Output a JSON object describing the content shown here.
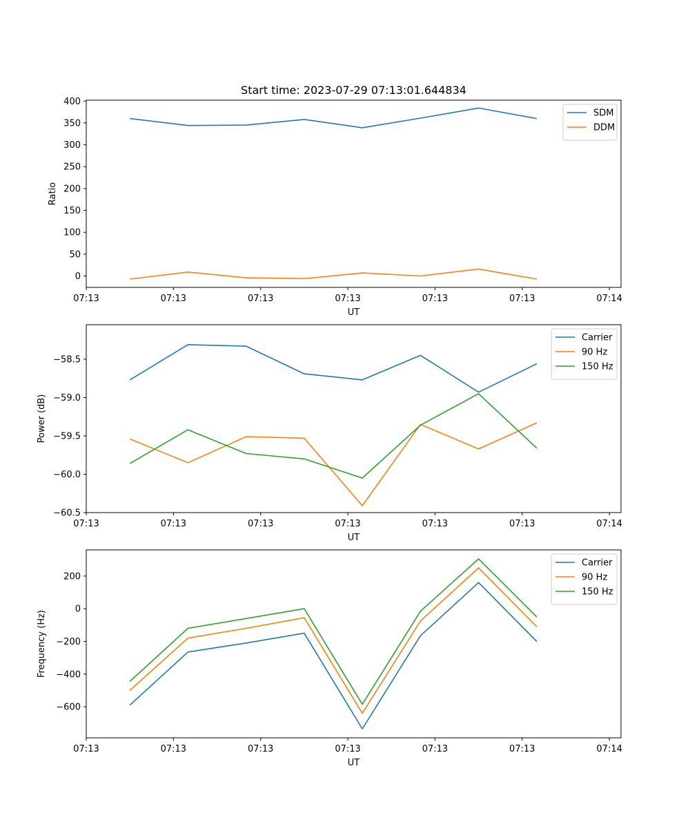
{
  "chart_data": [
    {
      "type": "line",
      "title": "Start time: 2023-07-29 07:13:01.644834",
      "xlabel": "UT",
      "ylabel": "Ratio",
      "x": [
        0,
        1,
        2,
        3,
        4,
        5,
        6,
        7
      ],
      "xlim": [
        -0.75,
        8.45
      ],
      "xtick_positions": [
        -0.75,
        0.75,
        2.25,
        3.75,
        5.25,
        6.75,
        8.25
      ],
      "xtick_labels": [
        "07:13",
        "07:13",
        "07:13",
        "07:13",
        "07:13",
        "07:13",
        "07:14"
      ],
      "ylim": [
        -26,
        402
      ],
      "yticks": [
        0,
        50,
        100,
        150,
        200,
        250,
        300,
        350,
        400
      ],
      "ytick_labels": [
        "0",
        "50",
        "100",
        "150",
        "200",
        "250",
        "300",
        "350",
        "400"
      ],
      "legend_position": "top-right",
      "series": [
        {
          "name": "SDM",
          "color": "#1f77b4",
          "values": [
            360,
            344,
            345,
            358,
            339,
            361,
            384,
            360
          ]
        },
        {
          "name": "DDM",
          "color": "#ff7f0e",
          "values": [
            -7,
            9,
            -4,
            -6,
            7,
            0,
            16,
            -7
          ]
        }
      ]
    },
    {
      "type": "line",
      "title": "",
      "xlabel": "UT",
      "ylabel": "Power (dB)",
      "x": [
        0,
        1,
        2,
        3,
        4,
        5,
        6,
        7
      ],
      "xlim": [
        -0.75,
        8.45
      ],
      "xtick_positions": [
        -0.75,
        0.75,
        2.25,
        3.75,
        5.25,
        6.75,
        8.25
      ],
      "xtick_labels": [
        "07:13",
        "07:13",
        "07:13",
        "07:13",
        "07:13",
        "07:13",
        "07:14"
      ],
      "ylim": [
        -60.5,
        -58.05
      ],
      "yticks": [
        -60.5,
        -60.0,
        -59.5,
        -59.0,
        -58.5
      ],
      "ytick_labels": [
        "−60.5",
        "−60.0",
        "−59.5",
        "−59.0",
        "−58.5"
      ],
      "legend_position": "top-right",
      "series": [
        {
          "name": "Carrier",
          "color": "#1f77b4",
          "values": [
            -58.77,
            -58.31,
            -58.33,
            -58.69,
            -58.77,
            -58.45,
            -58.93,
            -58.56
          ]
        },
        {
          "name": "90 Hz",
          "color": "#ff7f0e",
          "values": [
            -59.54,
            -59.85,
            -59.51,
            -59.53,
            -60.41,
            -59.35,
            -59.67,
            -59.33
          ]
        },
        {
          "name": "150 Hz",
          "color": "#2ca02c",
          "values": [
            -59.86,
            -59.42,
            -59.73,
            -59.8,
            -60.05,
            -59.36,
            -58.95,
            -59.66
          ]
        }
      ]
    },
    {
      "type": "line",
      "title": "",
      "xlabel": "UT",
      "ylabel": "Frequency (Hz)",
      "x": [
        0,
        1,
        2,
        3,
        4,
        5,
        6,
        7
      ],
      "xlim": [
        -0.75,
        8.45
      ],
      "xtick_positions": [
        -0.75,
        0.75,
        2.25,
        3.75,
        5.25,
        6.75,
        8.25
      ],
      "xtick_labels": [
        "07:13",
        "07:13",
        "07:13",
        "07:13",
        "07:13",
        "07:13",
        "07:14"
      ],
      "ylim": [
        -790,
        360
      ],
      "yticks": [
        -600,
        -400,
        -200,
        0,
        200
      ],
      "ytick_labels": [
        "−600",
        "−400",
        "−200",
        "0",
        "200"
      ],
      "legend_position": "top-right",
      "series": [
        {
          "name": "Carrier",
          "color": "#1f77b4",
          "values": [
            -590,
            -265,
            -210,
            -150,
            -735,
            -165,
            160,
            -200
          ]
        },
        {
          "name": "90 Hz",
          "color": "#ff7f0e",
          "values": [
            -500,
            -180,
            -120,
            -55,
            -640,
            -75,
            250,
            -110
          ]
        },
        {
          "name": "150 Hz",
          "color": "#2ca02c",
          "values": [
            -445,
            -120,
            -60,
            0,
            -585,
            -15,
            305,
            -50
          ]
        }
      ]
    }
  ]
}
